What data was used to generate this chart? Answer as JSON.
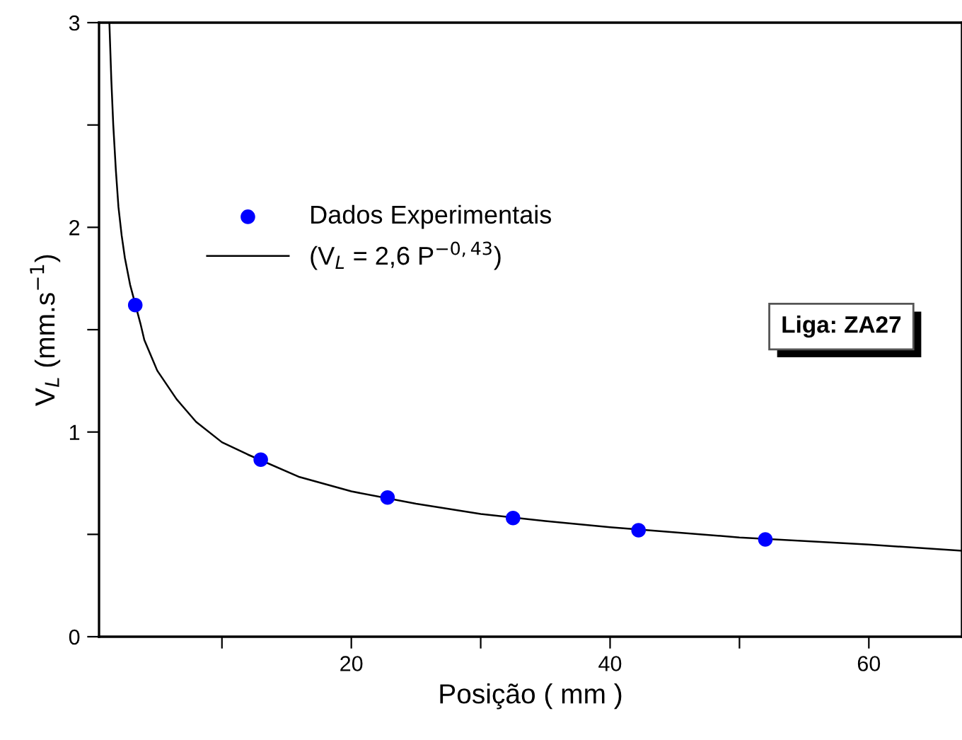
{
  "chart_data": {
    "type": "scatter",
    "xlabel": "Posição ( mm )",
    "ylabel": "V$_{L}$ (mm.s$^{−1}$)",
    "xlim": [
      0.5,
      67.2
    ],
    "ylim": [
      0,
      3
    ],
    "xticks": [
      {
        "value": 10,
        "label": null
      },
      20,
      {
        "value": 30,
        "label": null
      },
      40,
      {
        "value": 50,
        "label": null
      },
      60
    ],
    "yticks": [
      0,
      {
        "value": 0.5,
        "label": null
      },
      1,
      {
        "value": 1.5,
        "label": null
      },
      2,
      {
        "value": 2.5,
        "label": null
      },
      3
    ],
    "grid": false,
    "legend": "center",
    "annotations": [
      "Liga: ZA27"
    ],
    "series": [
      {
        "name": "Dados Experimentais",
        "color": "#0000ff",
        "marker": "circle",
        "x": [
          3.3,
          13,
          22.8,
          32.5,
          42.2,
          52
        ],
        "values": [
          1.62,
          0.865,
          0.68,
          0.58,
          0.52,
          0.475
        ]
      },
      {
        "name": "(V$_{L}$ = 2,6 P$^{−0,43}$)",
        "type": "line",
        "color": "#000000",
        "line_style": "solid",
        "x": [
          1.3,
          1.45,
          1.6,
          1.8,
          2,
          2.25,
          2.5,
          2.9,
          3.7,
          4,
          5,
          6.5,
          8,
          10,
          12,
          16,
          20,
          25,
          30,
          35,
          40,
          50,
          60,
          67.2
        ],
        "values": [
          3.0,
          2.72,
          2.5,
          2.28,
          2.1,
          1.96,
          1.85,
          1.72,
          1.53,
          1.45,
          1.3,
          1.16,
          1.05,
          0.95,
          0.89,
          0.78,
          0.71,
          0.65,
          0.6,
          0.565,
          0.535,
          0.485,
          0.45,
          0.42
        ]
      }
    ]
  }
}
